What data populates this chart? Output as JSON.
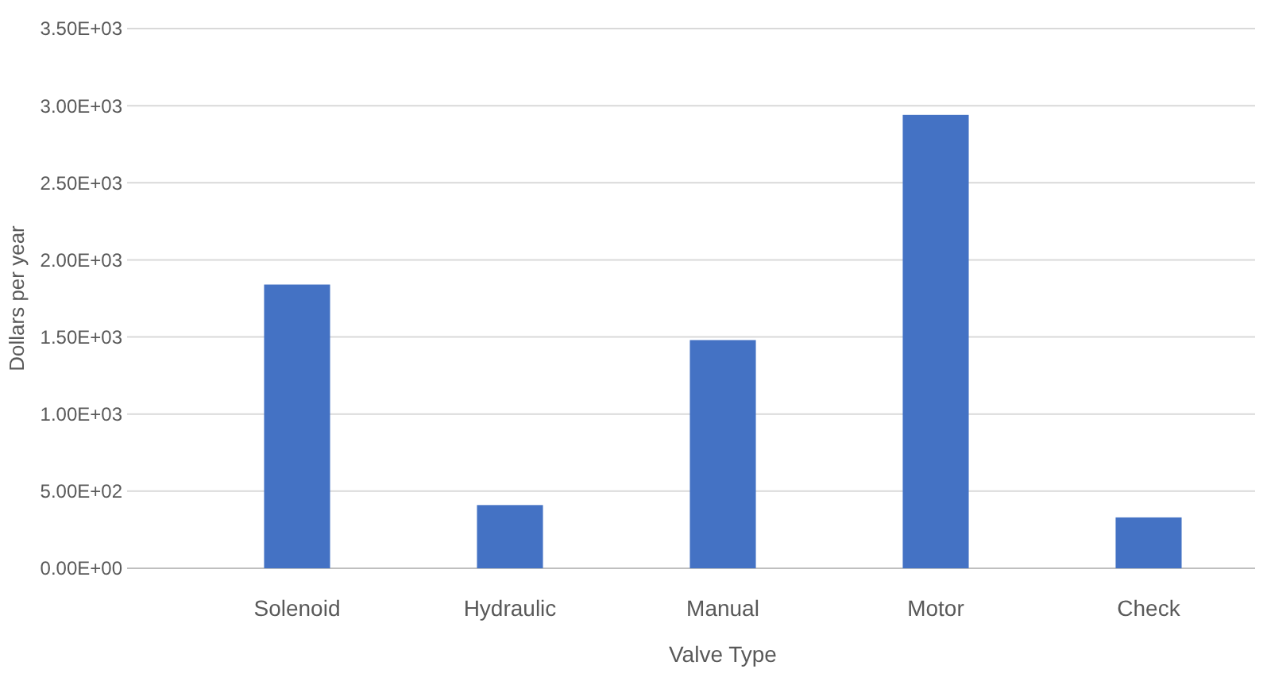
{
  "chart_data": {
    "type": "bar",
    "xlabel": "Valve Type",
    "ylabel": "Dollars per year",
    "categories": [
      "Solenoid",
      "Hydraulic",
      "Manual",
      "Motor",
      "Check"
    ],
    "values": [
      1840,
      410,
      1480,
      2940,
      330
    ],
    "color": "#4472c4",
    "ylim": [
      0,
      3500
    ],
    "yticks": [
      {
        "value": 0,
        "label": "0.00E+00"
      },
      {
        "value": 500,
        "label": "5.00E+02"
      },
      {
        "value": 1000,
        "label": "1.00E+03"
      },
      {
        "value": 1500,
        "label": "1.50E+03"
      },
      {
        "value": 2000,
        "label": "2.00E+03"
      },
      {
        "value": 2500,
        "label": "2.50E+03"
      },
      {
        "value": 3000,
        "label": "3.00E+03"
      },
      {
        "value": 3500,
        "label": "3.50E+03"
      }
    ],
    "grid": "y"
  }
}
